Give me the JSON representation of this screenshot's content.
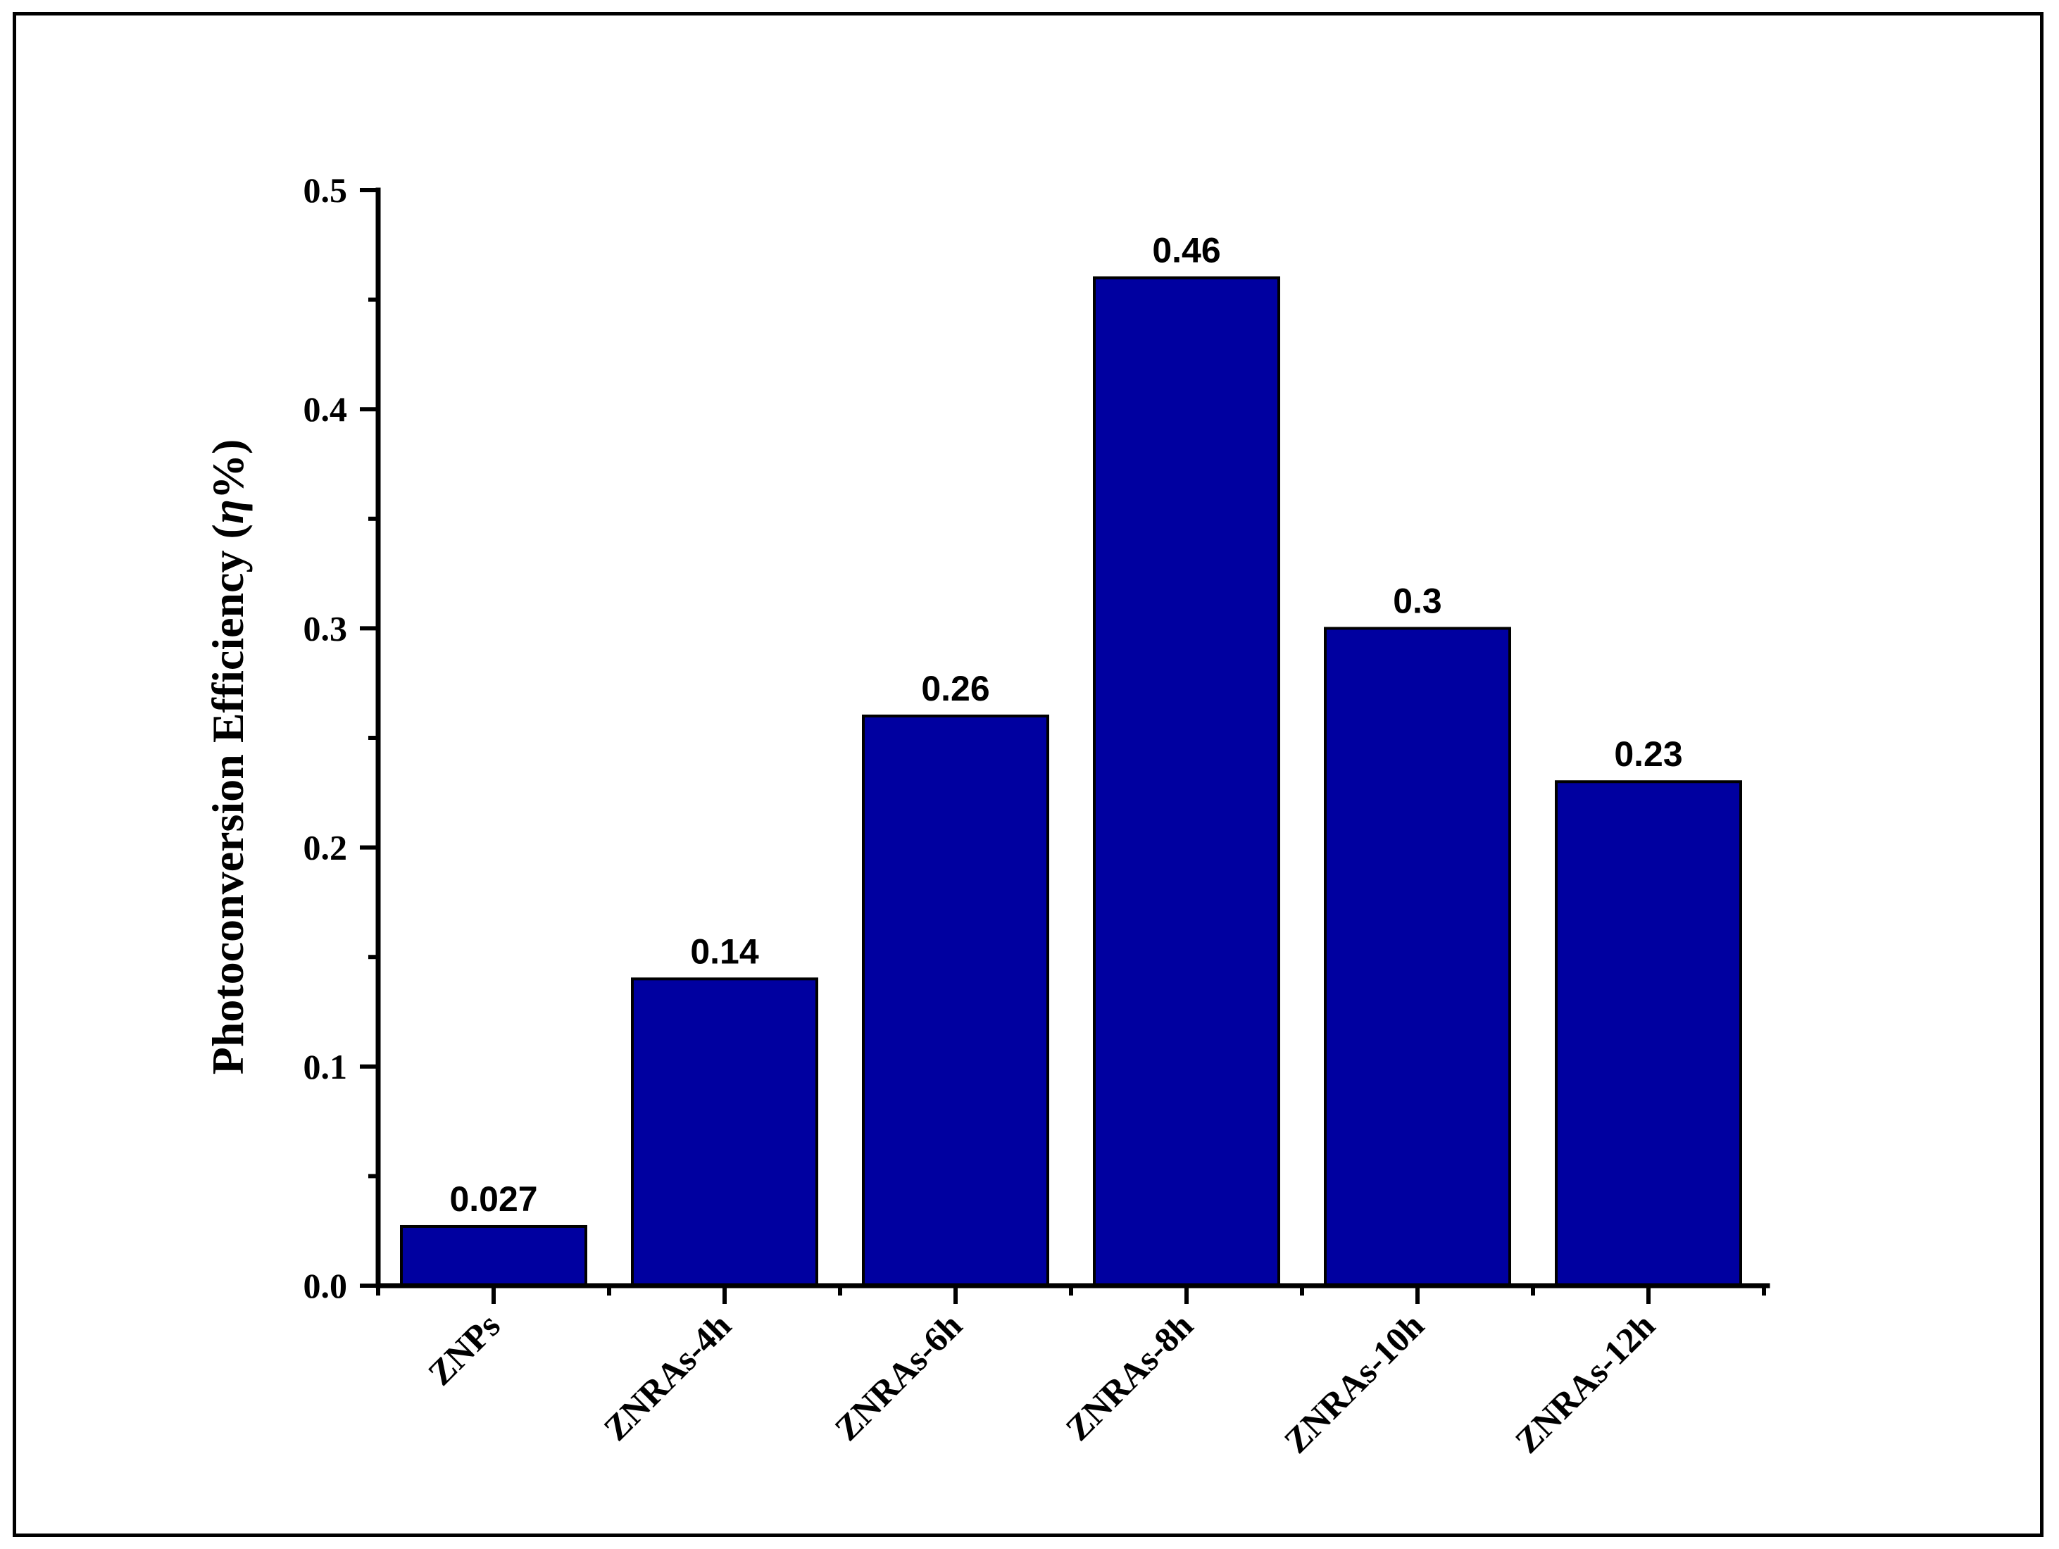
{
  "chart_data": {
    "type": "bar",
    "categories": [
      "ZNPs",
      "ZNRAs-4h",
      "ZNRAs-6h",
      "ZNRAs-8h",
      "ZNRAs-10h",
      "ZNRAs-12h"
    ],
    "values": [
      0.027,
      0.14,
      0.26,
      0.46,
      0.3,
      0.23
    ],
    "data_labels": [
      "0.027",
      "0.14",
      "0.26",
      "0.46",
      "0.3",
      "0.23"
    ],
    "title": "",
    "xlabel": "",
    "ylabel_main": "Photoconversion Efficiency (",
    "ylabel_symbol": "η",
    "ylabel_tail": "%)",
    "ylim": [
      0,
      0.5
    ],
    "yticks": [
      0.0,
      0.1,
      0.2,
      0.3,
      0.4,
      0.5
    ],
    "ytick_labels": [
      "0.0",
      "0.1",
      "0.2",
      "0.3",
      "0.4",
      "0.5"
    ],
    "bar_color": "#0000A0",
    "grid": false,
    "legend": "none"
  }
}
